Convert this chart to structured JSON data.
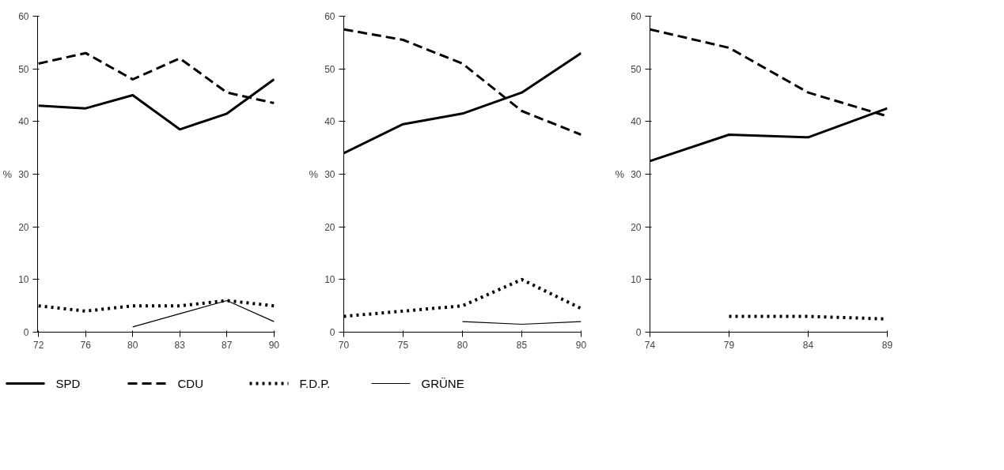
{
  "chart_data": [
    {
      "type": "line",
      "ylabel": "%",
      "categories": [
        "72",
        "76",
        "80",
        "83",
        "87",
        "90"
      ],
      "ylim": [
        0,
        60
      ],
      "yticks": [
        0,
        10,
        20,
        30,
        40,
        50,
        60
      ],
      "grid": false,
      "legend": "bottom",
      "series": [
        {
          "name": "SPD",
          "color": "#000000",
          "line_style": "solid",
          "values": [
            43,
            42.5,
            45,
            38.5,
            41.5,
            48
          ]
        },
        {
          "name": "CDU",
          "color": "#000000",
          "line_style": "dashed",
          "values": [
            51,
            53,
            48,
            52,
            45.5,
            43.5
          ]
        },
        {
          "name": "F.D.P.",
          "color": "#000000",
          "line_style": "dotted",
          "values": [
            5,
            4,
            5,
            5,
            6,
            5
          ]
        },
        {
          "name": "GRÜNE",
          "color": "#000000",
          "line_style": "solid",
          "values": [
            null,
            null,
            1,
            3.5,
            6,
            2
          ]
        }
      ]
    },
    {
      "type": "line",
      "ylabel": "%",
      "x": [
        70,
        75,
        80,
        85,
        90
      ],
      "xlim": [
        70,
        90
      ],
      "xticks": [
        70,
        75,
        80,
        85,
        90
      ],
      "ylim": [
        0,
        60
      ],
      "yticks": [
        0,
        10,
        20,
        30,
        40,
        50,
        60
      ],
      "grid": false,
      "series": [
        {
          "color": "#000000",
          "line_style": "solid",
          "values": [
            34,
            39.5,
            41.5,
            45.5,
            53
          ]
        },
        {
          "color": "#000000",
          "line_style": "dashed",
          "values": [
            57.5,
            55.5,
            51,
            42,
            37.5
          ]
        },
        {
          "color": "#000000",
          "line_style": "dotted",
          "values": [
            3,
            4,
            5,
            10,
            4.5
          ]
        },
        {
          "color": "#000000",
          "line_style": "solid",
          "x": [
            80,
            85,
            90
          ],
          "values": [
            2,
            1.5,
            2
          ]
        }
      ]
    },
    {
      "type": "line",
      "ylabel": "%",
      "x": [
        74,
        79,
        84,
        89
      ],
      "xlim": [
        74,
        89
      ],
      "xticks": [
        74,
        79,
        84,
        89
      ],
      "ylim": [
        0,
        60
      ],
      "yticks": [
        0,
        10,
        20,
        30,
        40,
        50,
        60
      ],
      "grid": false,
      "series": [
        {
          "color": "#000000",
          "line_style": "solid",
          "values": [
            32.5,
            37.5,
            37,
            42.5
          ]
        },
        {
          "color": "#000000",
          "line_style": "dashed",
          "values": [
            57.5,
            54,
            45.5,
            41
          ]
        },
        {
          "color": "#000000",
          "line_style": "dotted",
          "x": [
            79,
            84,
            89
          ],
          "values": [
            3,
            3,
            2.5
          ]
        }
      ]
    }
  ]
}
